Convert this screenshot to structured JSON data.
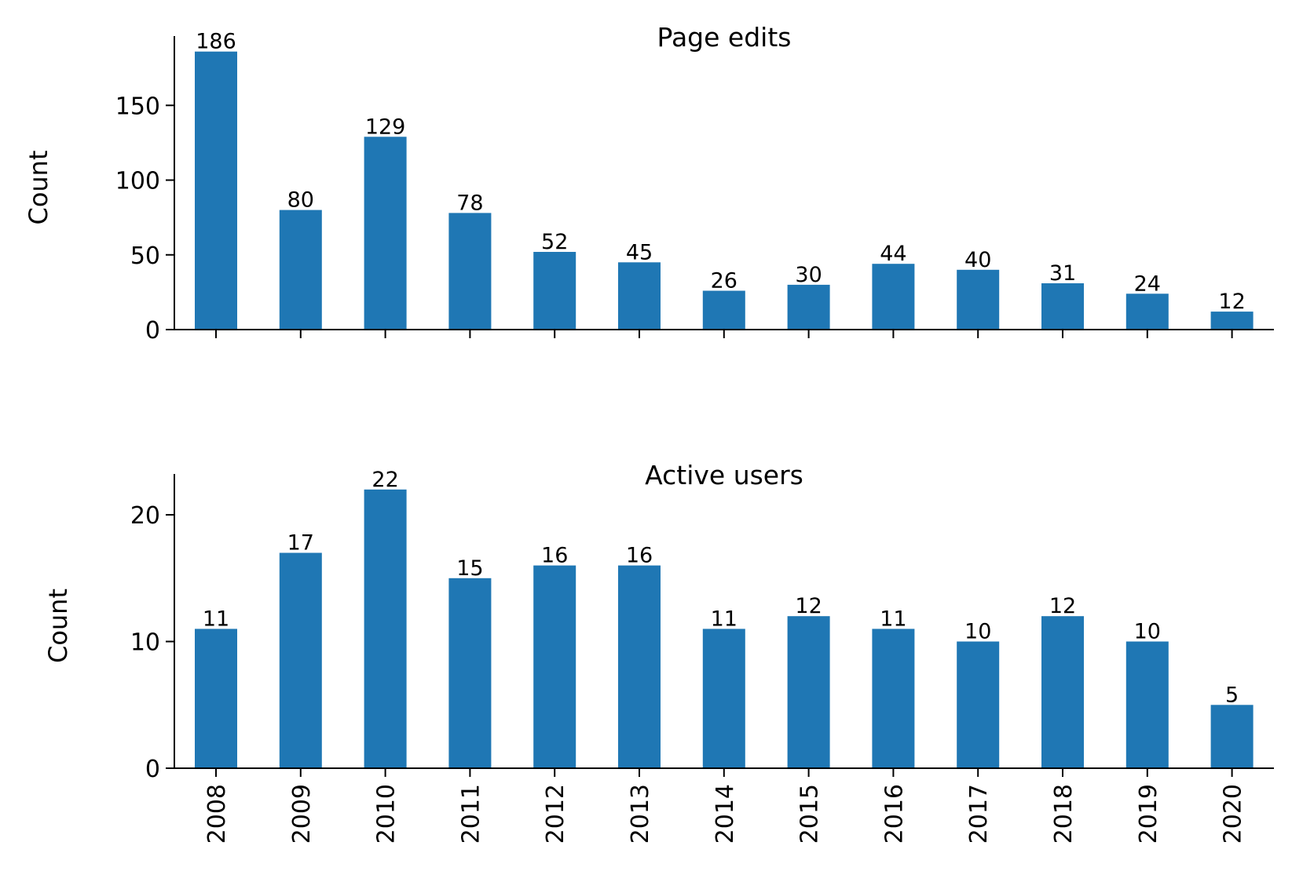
{
  "chart_data": [
    {
      "type": "bar",
      "title": "Page edits",
      "xlabel": "",
      "ylabel": "Count",
      "categories": [
        "2008",
        "2009",
        "2010",
        "2011",
        "2012",
        "2013",
        "2014",
        "2015",
        "2016",
        "2017",
        "2018",
        "2019",
        "2020"
      ],
      "values": [
        186,
        80,
        129,
        78,
        52,
        45,
        26,
        30,
        44,
        40,
        31,
        24,
        12
      ],
      "yticks": [
        0,
        50,
        100,
        150
      ],
      "ylim": [
        0,
        195.3
      ],
      "color": "#1f77b4",
      "grid": false,
      "show_xtick_labels": false
    },
    {
      "type": "bar",
      "title": "Active users",
      "xlabel": "",
      "ylabel": "Count",
      "categories": [
        "2008",
        "2009",
        "2010",
        "2011",
        "2012",
        "2013",
        "2014",
        "2015",
        "2016",
        "2017",
        "2018",
        "2019",
        "2020"
      ],
      "values": [
        11,
        17,
        22,
        15,
        16,
        16,
        11,
        12,
        11,
        10,
        12,
        10,
        5
      ],
      "yticks": [
        0,
        10,
        20
      ],
      "ylim": [
        0,
        23.1
      ],
      "color": "#1f77b4",
      "grid": false,
      "show_xtick_labels": true
    }
  ]
}
